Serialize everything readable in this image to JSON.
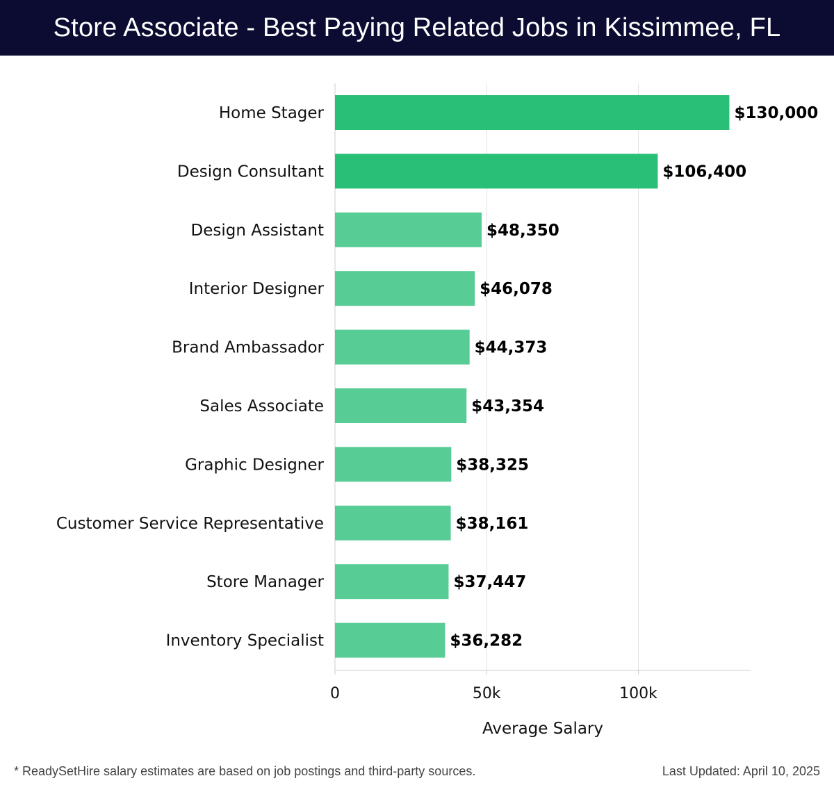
{
  "header": {
    "title": "Store Associate - Best Paying Related Jobs in Kissimmee, FL"
  },
  "chart_data": {
    "type": "bar",
    "orientation": "horizontal",
    "categories": [
      "Home Stager",
      "Design Consultant",
      "Design Assistant",
      "Interior Designer",
      "Brand Ambassador",
      "Sales Associate",
      "Graphic Designer",
      "Customer Service Representative",
      "Store Manager",
      "Inventory Specialist"
    ],
    "values": [
      130000,
      106400,
      48350,
      46078,
      44373,
      43354,
      38325,
      38161,
      37447,
      36282
    ],
    "data_labels": [
      "$130,000",
      "$106,400",
      "$48,350",
      "$46,078",
      "$44,373",
      "$43,354",
      "$38,325",
      "$38,161",
      "$37,447",
      "$36,282"
    ],
    "xlabel": "Average Salary",
    "ylabel": "",
    "xlim": [
      0,
      137000
    ],
    "x_ticks": [
      0,
      50000,
      100000
    ],
    "x_tick_labels": [
      "0",
      "50k",
      "100k"
    ],
    "grid": "vertical",
    "colors": {
      "top_bar": "#2abf76",
      "bar": "#54cb93",
      "grid": "#e3e3e3",
      "axis": "#cccccc"
    }
  },
  "footer": {
    "note": "* ReadySetHire salary estimates are based on job postings and third-party sources.",
    "updated": "Last Updated: April 10, 2025"
  }
}
